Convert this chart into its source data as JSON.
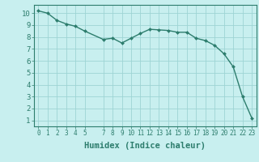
{
  "x": [
    0,
    1,
    2,
    3,
    4,
    5,
    7,
    8,
    9,
    10,
    11,
    12,
    13,
    14,
    15,
    16,
    17,
    18,
    19,
    20,
    21,
    22,
    23
  ],
  "y": [
    10.2,
    10.0,
    9.4,
    9.1,
    8.9,
    8.5,
    7.8,
    7.9,
    7.5,
    7.9,
    8.3,
    8.65,
    8.6,
    8.55,
    8.4,
    8.4,
    7.9,
    7.7,
    7.3,
    6.6,
    5.5,
    3.0,
    1.2
  ],
  "x_ticks": [
    0,
    1,
    2,
    3,
    4,
    5,
    7,
    8,
    9,
    10,
    11,
    12,
    13,
    14,
    15,
    16,
    17,
    18,
    19,
    20,
    21,
    22,
    23
  ],
  "x_tick_labels": [
    "0",
    "1",
    "2",
    "3",
    "4",
    "5",
    "7",
    "8",
    "9",
    "10",
    "11",
    "12",
    "13",
    "14",
    "15",
    "16",
    "17",
    "18",
    "19",
    "20",
    "21",
    "22",
    "23"
  ],
  "y_ticks": [
    1,
    2,
    3,
    4,
    5,
    6,
    7,
    8,
    9,
    10
  ],
  "y_lim": [
    0.5,
    10.7
  ],
  "x_lim": [
    -0.5,
    23.5
  ],
  "xlabel": "Humidex (Indice chaleur)",
  "line_color": "#2d7d6d",
  "marker_color": "#2d7d6d",
  "bg_color": "#c8efef",
  "grid_color": "#9ed4d4",
  "tick_color": "#2d7d6d",
  "label_color": "#2d7d6d",
  "xlabel_fontsize": 7.5,
  "ytick_fontsize": 6.5,
  "xtick_fontsize": 5.5
}
